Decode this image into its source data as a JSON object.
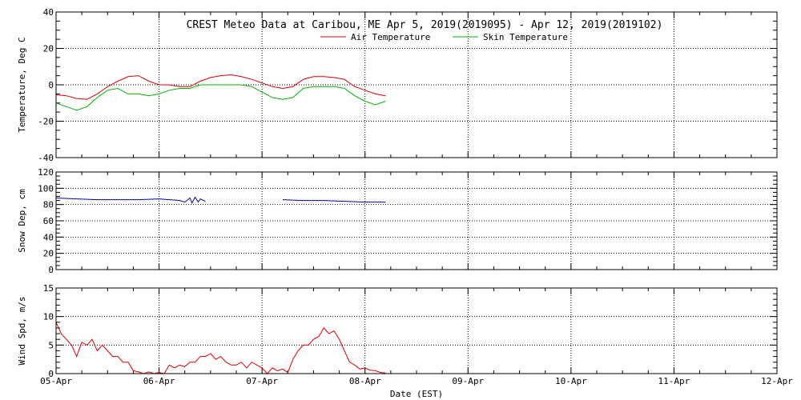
{
  "chart_data": {
    "type": "line",
    "title": "CREST Meteo Data at Caribou, ME   Apr  5, 2019(2019095) - Apr 12, 2019(2019102)",
    "xlabel": "Date (EST)",
    "x_categories": [
      "05-Apr",
      "06-Apr",
      "07-Apr",
      "08-Apr",
      "09-Apr",
      "10-Apr",
      "11-Apr",
      "12-Apr"
    ],
    "xlim": [
      0,
      7
    ],
    "x_unit": "days",
    "panels": [
      {
        "id": "temperature",
        "ylabel": "Temperature, Deg C",
        "ylim": [
          -40,
          40
        ],
        "yticks": [
          -40,
          -20,
          0,
          20,
          40
        ],
        "grid": true,
        "legend": "top-center",
        "series": [
          {
            "name": "Air Temperature",
            "color": "#e00000",
            "x": [
              0.0,
              0.1,
              0.2,
              0.3,
              0.4,
              0.5,
              0.6,
              0.7,
              0.8,
              0.9,
              1.0,
              1.1,
              1.2,
              1.3,
              1.4,
              1.5,
              1.6,
              1.7,
              1.8,
              1.9,
              2.0,
              2.1,
              2.2,
              2.3,
              2.4,
              2.5,
              2.6,
              2.7,
              2.8,
              2.9,
              3.0,
              3.1,
              3.2
            ],
            "y": [
              -5.5,
              -6,
              -7.5,
              -8,
              -5,
              -1,
              2,
              4.5,
              5,
              2,
              0,
              0,
              -1,
              -1,
              2,
              4,
              5,
              5.5,
              4.5,
              3,
              1,
              -1,
              -2,
              -1,
              3,
              4.5,
              4.5,
              4,
              3,
              -1,
              -3,
              -5,
              -6
            ]
          },
          {
            "name": "Skin Temperature",
            "color": "#00b400",
            "x": [
              0.0,
              0.1,
              0.2,
              0.3,
              0.4,
              0.5,
              0.6,
              0.7,
              0.8,
              0.9,
              1.0,
              1.1,
              1.2,
              1.3,
              1.4,
              1.5,
              1.6,
              1.7,
              1.8,
              1.9,
              2.0,
              2.1,
              2.2,
              2.3,
              2.4,
              2.5,
              2.6,
              2.7,
              2.8,
              2.9,
              3.0,
              3.1,
              3.2
            ],
            "y": [
              -10,
              -12,
              -14,
              -12,
              -7,
              -3,
              -2,
              -5,
              -5,
              -6,
              -5,
              -3,
              -2,
              -2,
              0,
              0,
              0,
              0,
              0,
              -1,
              -4,
              -7,
              -8,
              -7,
              -2,
              -1,
              -1,
              -1,
              -2,
              -6,
              -9,
              -11,
              -9
            ]
          }
        ]
      },
      {
        "id": "snow",
        "ylabel": "Snow Dep, cm",
        "ylim": [
          0,
          120
        ],
        "yticks": [
          0,
          20,
          40,
          60,
          80,
          100,
          120
        ],
        "grid": true,
        "series": [
          {
            "name": "",
            "color": "#000099",
            "x": [
              0.0,
              0.2,
              0.4,
              0.6,
              0.8,
              1.0,
              1.1,
              1.2,
              1.25,
              1.3,
              1.32,
              1.35,
              1.38,
              1.4,
              1.45,
              null,
              1.55,
              null,
              1.6,
              null,
              1.7,
              null,
              1.72,
              null,
              2.2,
              2.4,
              2.6,
              2.8,
              3.0,
              3.2
            ],
            "y": [
              88,
              87,
              86,
              86,
              86,
              87,
              86,
              85,
              83,
              88,
              82,
              89,
              83,
              87,
              84,
              null,
              87,
              null,
              86,
              null,
              86,
              null,
              85,
              null,
              86,
              85,
              85,
              84,
              83,
              83
            ]
          }
        ]
      },
      {
        "id": "wind",
        "ylabel": "Wind Spd, m/s",
        "ylim": [
          0,
          15
        ],
        "yticks": [
          0,
          5,
          10,
          15
        ],
        "grid": true,
        "series": [
          {
            "name": "",
            "color": "#e00000",
            "x": [
              0.0,
              0.05,
              0.1,
              0.15,
              0.2,
              0.25,
              0.3,
              0.35,
              0.4,
              0.45,
              0.5,
              0.55,
              0.6,
              0.65,
              0.7,
              0.75,
              0.8,
              0.85,
              0.9,
              0.95,
              1.0,
              1.05,
              1.1,
              1.15,
              1.2,
              1.25,
              1.3,
              1.35,
              1.4,
              1.45,
              1.5,
              1.55,
              1.6,
              1.65,
              1.7,
              1.75,
              1.8,
              1.85,
              1.9,
              1.95,
              2.0,
              2.05,
              2.1,
              2.15,
              2.2,
              2.25,
              2.3,
              2.35,
              2.4,
              2.45,
              2.5,
              2.55,
              2.6,
              2.65,
              2.7,
              2.75,
              2.8,
              2.85,
              2.9,
              2.95,
              3.0,
              3.05,
              3.1,
              3.15,
              3.2
            ],
            "y": [
              9,
              7,
              6,
              5,
              3,
              5.5,
              5,
              6,
              4,
              5,
              4,
              3,
              3,
              2,
              2,
              0.5,
              0.3,
              0,
              0.3,
              0,
              0.2,
              0,
              1.5,
              1,
              1.5,
              1.2,
              2,
              2,
              3,
              3,
              3.5,
              2.5,
              3,
              2,
              1.5,
              1.5,
              2,
              1,
              2,
              1.5,
              1,
              0,
              1,
              0.5,
              0.8,
              0.2,
              2.5,
              4,
              5,
              5,
              6,
              6.5,
              8,
              7,
              7.5,
              6,
              4,
              2,
              1.5,
              0.8,
              1,
              0.6,
              0.5,
              0.2,
              0.1
            ]
          }
        ]
      }
    ]
  }
}
